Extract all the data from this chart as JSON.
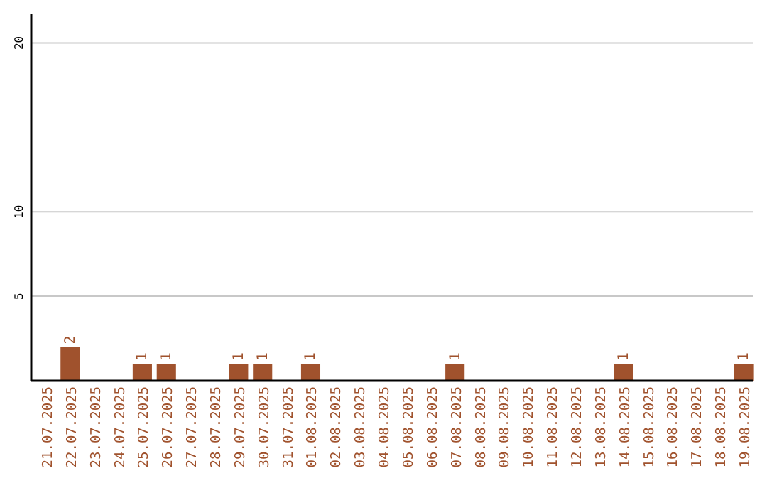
{
  "chart_data": {
    "type": "bar",
    "categories": [
      "21.07.2025",
      "22.07.2025",
      "23.07.2025",
      "24.07.2025",
      "25.07.2025",
      "26.07.2025",
      "27.07.2025",
      "28.07.2025",
      "29.07.2025",
      "30.07.2025",
      "31.07.2025",
      "01.08.2025",
      "02.08.2025",
      "03.08.2025",
      "04.08.2025",
      "05.08.2025",
      "06.08.2025",
      "07.08.2025",
      "08.08.2025",
      "09.08.2025",
      "10.08.2025",
      "11.08.2025",
      "12.08.2025",
      "13.08.2025",
      "14.08.2025",
      "15.08.2025",
      "16.08.2025",
      "17.08.2025",
      "18.08.2025",
      "19.08.2025"
    ],
    "values": [
      0,
      2,
      0,
      0,
      1,
      1,
      0,
      0,
      1,
      1,
      0,
      1,
      0,
      0,
      0,
      0,
      0,
      1,
      0,
      0,
      0,
      0,
      0,
      0,
      1,
      0,
      0,
      0,
      0,
      1
    ],
    "value_labels": [
      null,
      "2",
      null,
      null,
      "1",
      "1",
      null,
      null,
      "1",
      "1",
      null,
      "1",
      null,
      null,
      null,
      null,
      null,
      "1",
      null,
      null,
      null,
      null,
      null,
      null,
      "1",
      null,
      null,
      null,
      null,
      "1"
    ],
    "color": "#a0522d",
    "ylim": [
      0,
      21.7
    ],
    "yticks": [
      5,
      10,
      20
    ],
    "grid": "y"
  }
}
